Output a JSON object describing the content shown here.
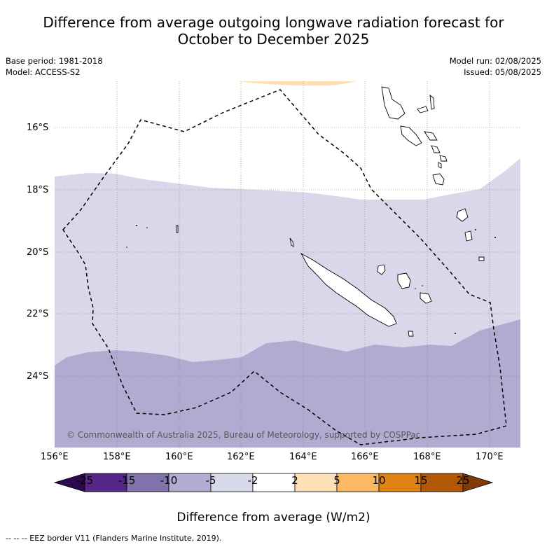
{
  "title_line1": "Difference from average outgoing longwave radiation forecast for",
  "title_line2": "October to December 2025",
  "meta_left": {
    "base_period": "Base period: 1981-2018",
    "model": "Model: ACCESS-S2"
  },
  "meta_right": {
    "model_run": "Model run: 02/08/2025",
    "issued": "Issued: 05/08/2025"
  },
  "map": {
    "lon_labels": [
      "156°E",
      "158°E",
      "160°E",
      "162°E",
      "164°E",
      "166°E",
      "168°E",
      "170°E"
    ],
    "lat_labels": [
      "16°S",
      "18°S",
      "20°S",
      "22°S",
      "24°S"
    ],
    "copyright": "© Commonwealth of Australia 2025, Bureau of Meteorology, supported by COSPPac",
    "colors": {
      "light_lavender": "#d8d8ea",
      "lavender": "#b1abd2",
      "pale_orange": "#fde0b3"
    }
  },
  "colorbar": {
    "labels": [
      "-25",
      "-15",
      "-10",
      "-5",
      "-2",
      "2",
      "5",
      "10",
      "15",
      "25"
    ],
    "colors": [
      "#2d0a4e",
      "#542788",
      "#8073ac",
      "#b2abd2",
      "#d8daeb",
      "#ffffff",
      "#fee0b6",
      "#fdb863",
      "#e08214",
      "#b35806",
      "#7f3b08"
    ],
    "title": "Difference from average (W/m2)"
  },
  "footnote": "--  --  -- EEZ border V11 (Flanders Marine Institute, 2019)."
}
